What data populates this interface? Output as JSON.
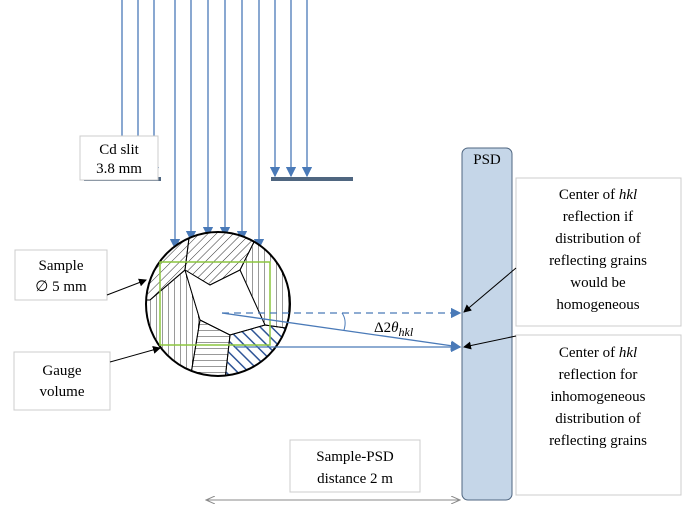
{
  "labels": {
    "cd_slit": [
      "Cd slit",
      "3.8 mm"
    ],
    "sample": [
      "Sample",
      "∅ 5 mm"
    ],
    "gauge": [
      "Gauge",
      "volume"
    ],
    "psd": "PSD",
    "angle": [
      "Δ2",
      "θ",
      "hkl"
    ],
    "homogeneous": [
      [
        "Center of ",
        "hkl"
      ],
      [
        "reflection if"
      ],
      [
        "distribution of"
      ],
      [
        "reflecting grains"
      ],
      [
        "would be"
      ],
      [
        "homogeneous"
      ]
    ],
    "inhomogeneous": [
      [
        "Center of ",
        "hkl"
      ],
      [
        "reflection for"
      ],
      [
        "inhomogeneous"
      ],
      [
        "distribution of"
      ],
      [
        "reflecting grains"
      ]
    ],
    "distance": [
      "Sample-PSD",
      "distance 2 m"
    ]
  }
}
